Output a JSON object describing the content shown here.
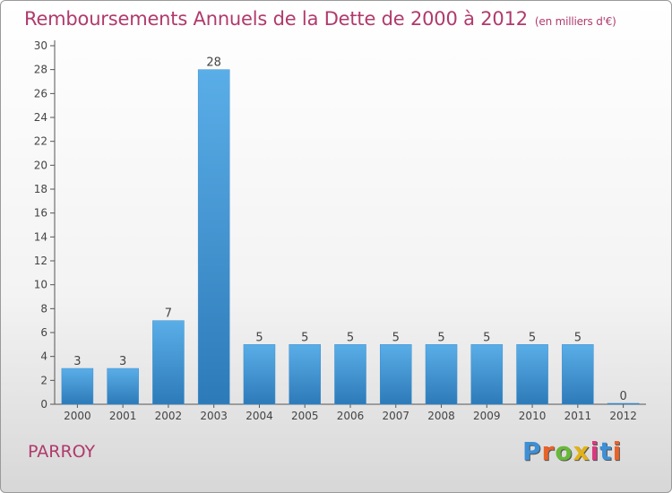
{
  "title": "Remboursements Annuels de la Dette de 2000 à 2012",
  "subtitle": "(en milliers d'€)",
  "commune": "PARROY",
  "brand": {
    "letters": [
      "P",
      "r",
      "o",
      "x",
      "i",
      "t",
      "i"
    ],
    "colors": [
      "#3d8fd6",
      "#e8632a",
      "#69b83a",
      "#e2b21a",
      "#d93a7f",
      "#3d8fd6",
      "#e8632a"
    ]
  },
  "colors": {
    "bar_top": "#5aaee8",
    "bar_bottom": "#2d7ab8",
    "title": "#b03a6c"
  },
  "chart_data": {
    "type": "bar",
    "title": "Remboursements Annuels de la Dette de 2000 à 2012",
    "categories": [
      "2000",
      "2001",
      "2002",
      "2003",
      "2004",
      "2005",
      "2006",
      "2007",
      "2008",
      "2009",
      "2010",
      "2011",
      "2012"
    ],
    "values": [
      3,
      3,
      7,
      28,
      5,
      5,
      5,
      5,
      5,
      5,
      5,
      5,
      0
    ],
    "ylim": [
      0,
      30
    ],
    "yticks": [
      0,
      2,
      4,
      6,
      8,
      10,
      12,
      14,
      16,
      18,
      20,
      22,
      24,
      26,
      28,
      30
    ],
    "grid": false,
    "xlabel": "",
    "ylabel": ""
  }
}
